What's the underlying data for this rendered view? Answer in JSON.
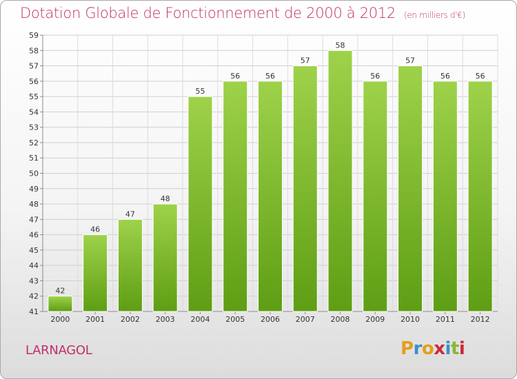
{
  "header": {
    "title": "Dotation Globale de Fonctionnement de 2000 à 2012",
    "unit": "(en milliers d'€)"
  },
  "commune": "LARNAGOL",
  "logo": {
    "letters": [
      "P",
      "r",
      "o",
      "x",
      "i",
      "t",
      "i"
    ],
    "colors": [
      "#e2a019",
      "#3d8fc6",
      "#e2a019",
      "#cc2a3c",
      "#3d8fc6",
      "#8ab833",
      "#cc2a3c"
    ]
  },
  "chart_data": {
    "type": "bar",
    "title": "Dotation Globale de Fonctionnement de 2000 à 2012",
    "subtitle": "(en milliers d'€)",
    "xlabel": "",
    "ylabel": "",
    "categories": [
      "2000",
      "2001",
      "2002",
      "2003",
      "2004",
      "2005",
      "2006",
      "2007",
      "2008",
      "2009",
      "2010",
      "2011",
      "2012"
    ],
    "values": [
      42,
      46,
      47,
      48,
      55,
      56,
      56,
      57,
      58,
      56,
      57,
      56,
      56
    ],
    "ylim": [
      41,
      59
    ],
    "yticks": [
      41,
      42,
      43,
      44,
      45,
      46,
      47,
      48,
      49,
      50,
      51,
      52,
      53,
      54,
      55,
      56,
      57,
      58,
      59
    ],
    "grid": true,
    "legend": "none",
    "bar_color_top": "#9ed24a",
    "bar_color_bottom": "#5e9e14"
  }
}
